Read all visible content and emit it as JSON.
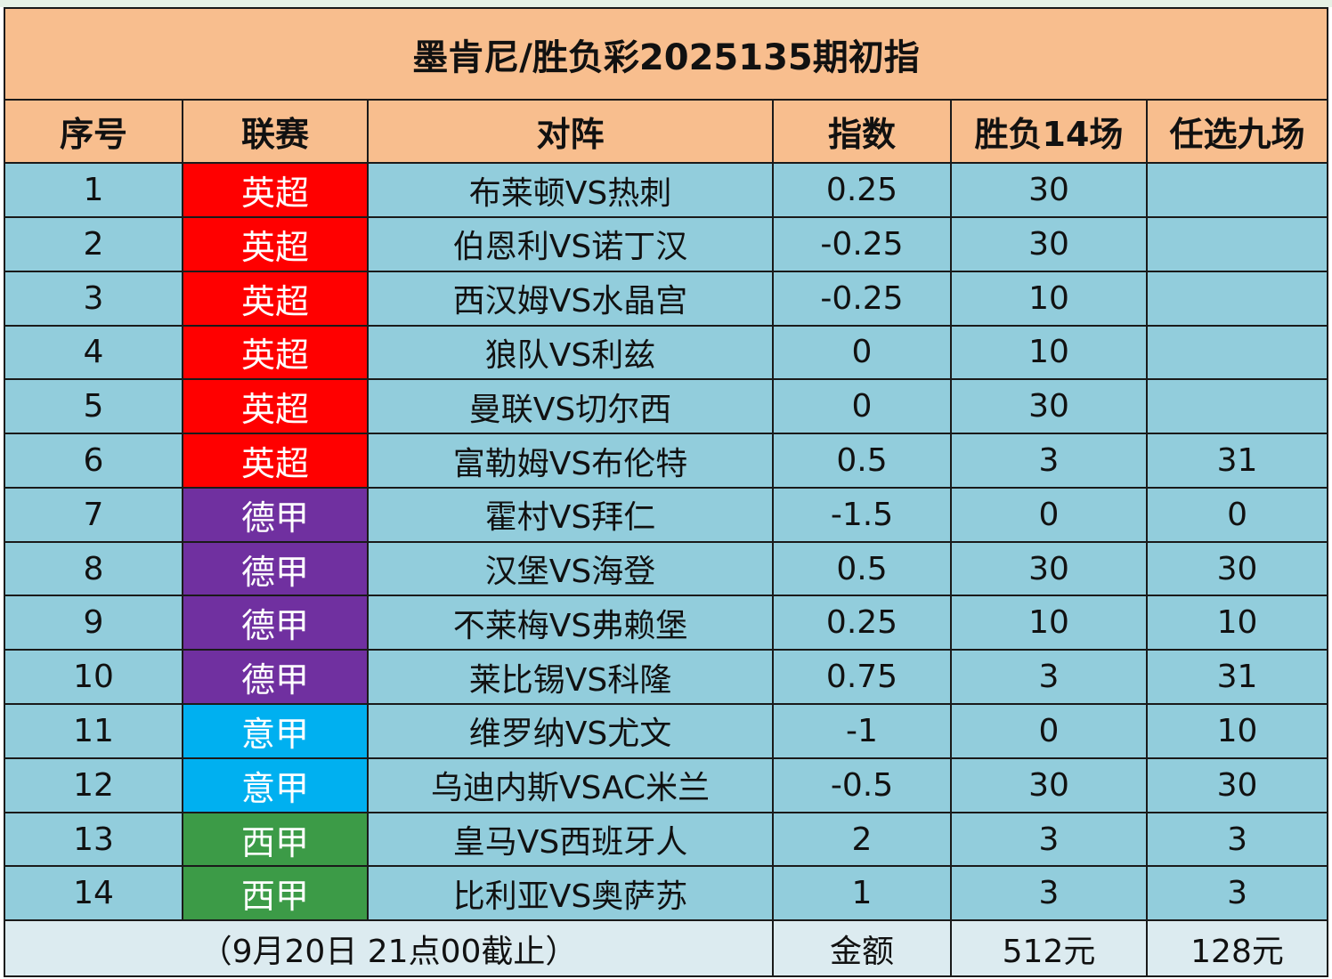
{
  "title": "墨肯尼/胜负彩2025135期初指",
  "headers": {
    "seq": "序号",
    "league": "联赛",
    "match": "对阵",
    "index": "指数",
    "sf14": "胜负14场",
    "r9": "任选九场"
  },
  "league_colors": {
    "英超": "#ff0000",
    "德甲": "#7030a0",
    "意甲": "#00b0f0",
    "西甲": "#3c9b47"
  },
  "rows": [
    {
      "seq": "1",
      "league": "英超",
      "match": "布莱顿VS热刺",
      "index": "0.25",
      "sf14": "30",
      "r9": ""
    },
    {
      "seq": "2",
      "league": "英超",
      "match": "伯恩利VS诺丁汉",
      "index": "-0.25",
      "sf14": "30",
      "r9": ""
    },
    {
      "seq": "3",
      "league": "英超",
      "match": "西汉姆VS水晶宫",
      "index": "-0.25",
      "sf14": "10",
      "r9": ""
    },
    {
      "seq": "4",
      "league": "英超",
      "match": "狼队VS利兹",
      "index": "0",
      "sf14": "10",
      "r9": ""
    },
    {
      "seq": "5",
      "league": "英超",
      "match": "曼联VS切尔西",
      "index": "0",
      "sf14": "30",
      "r9": ""
    },
    {
      "seq": "6",
      "league": "英超",
      "match": "富勒姆VS布伦特",
      "index": "0.5",
      "sf14": "3",
      "r9": "31"
    },
    {
      "seq": "7",
      "league": "德甲",
      "match": "霍村VS拜仁",
      "index": "-1.5",
      "sf14": "0",
      "r9": "0"
    },
    {
      "seq": "8",
      "league": "德甲",
      "match": "汉堡VS海登",
      "index": "0.5",
      "sf14": "30",
      "r9": "30"
    },
    {
      "seq": "9",
      "league": "德甲",
      "match": "不莱梅VS弗赖堡",
      "index": "0.25",
      "sf14": "10",
      "r9": "10"
    },
    {
      "seq": "10",
      "league": "德甲",
      "match": "莱比锡VS科隆",
      "index": "0.75",
      "sf14": "3",
      "r9": "31"
    },
    {
      "seq": "11",
      "league": "意甲",
      "match": "维罗纳VS尤文",
      "index": "-1",
      "sf14": "0",
      "r9": "10"
    },
    {
      "seq": "12",
      "league": "意甲",
      "match": "乌迪内斯VSAC米兰",
      "index": "-0.5",
      "sf14": "30",
      "r9": "30"
    },
    {
      "seq": "13",
      "league": "西甲",
      "match": "皇马VS西班牙人",
      "index": "2",
      "sf14": "3",
      "r9": "3"
    },
    {
      "seq": "14",
      "league": "西甲",
      "match": "比利亚VS奥萨苏",
      "index": "1",
      "sf14": "3",
      "r9": "3"
    }
  ],
  "footer": {
    "deadline": "（9月20日  21点00截止）",
    "amount_label": "金额",
    "sf14_amount": "512元",
    "r9_amount": "128元"
  }
}
